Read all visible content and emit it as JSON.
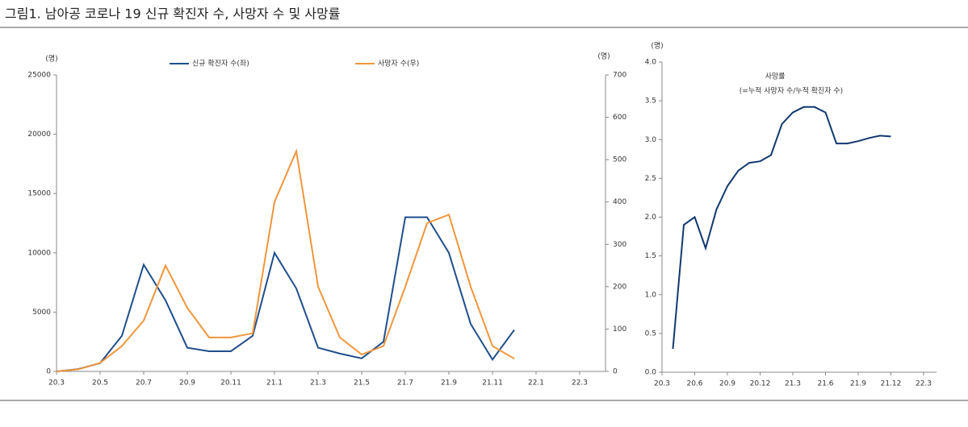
{
  "page_title": "그림1.  남아공 코로나 19 신규 확진자 수, 사망자 수 및 사망률",
  "chart_data": [
    {
      "type": "line",
      "ylabel": "(명)",
      "y2label": "(명)",
      "x": [
        "20.3",
        null,
        "20.5",
        null,
        "20.7",
        null,
        "20.9",
        null,
        "20.11",
        null,
        "21.1",
        null,
        "21.3",
        null,
        "21.5",
        null,
        "21.7",
        null,
        "21.9",
        null,
        "21.11",
        null,
        "22.1",
        null,
        "22.3"
      ],
      "ylim": [
        0,
        25000
      ],
      "yticks": [
        0,
        5000,
        10000,
        15000,
        20000,
        25000
      ],
      "y2lim": [
        0,
        700
      ],
      "y2ticks": [
        0,
        100,
        200,
        300,
        400,
        500,
        600,
        700
      ],
      "series": [
        {
          "name": "신규 확진자 수(좌)",
          "color": "#1f4e8c",
          "values": [
            0,
            200,
            700,
            3000,
            9000,
            6000,
            2000,
            1700,
            1700,
            3000,
            10000,
            7000,
            2000,
            1500,
            1100,
            2500,
            13000,
            13000,
            10000,
            4000,
            1000,
            3500,
            null,
            null,
            null
          ]
        },
        {
          "name": "사망자 수(우)",
          "color": "#f0963c",
          "axis": "y2",
          "values": [
            0,
            5,
            20,
            60,
            120,
            250,
            150,
            80,
            80,
            90,
            400,
            520,
            200,
            80,
            40,
            60,
            200,
            350,
            370,
            200,
            60,
            30,
            null,
            null,
            null
          ]
        }
      ]
    },
    {
      "type": "line",
      "ylabel": "(명)",
      "title": "사망률",
      "subtitle": "(=누적 사망자 수/누적 확진자 수)",
      "x": [
        "20.3",
        null,
        null,
        "20.6",
        null,
        null,
        "20.9",
        null,
        null,
        "20.12",
        null,
        null,
        "21.3",
        null,
        null,
        "21.6",
        null,
        null,
        "21.9",
        null,
        null,
        "21.12",
        null,
        null,
        "22.3"
      ],
      "ylim": [
        0,
        4
      ],
      "yticks": [
        {
          "value": 0,
          "label": "0.0"
        },
        0.5,
        {
          "value": 1,
          "label": "1.0"
        },
        1.5,
        {
          "value": 2,
          "label": "2.0"
        },
        2.5,
        {
          "value": 3,
          "label": "3.0"
        },
        3.5,
        {
          "value": 4,
          "label": "4.0"
        }
      ],
      "series": [
        {
          "color": "#12386e",
          "values": [
            null,
            0.3,
            1.9,
            2.0,
            1.6,
            2.1,
            2.4,
            2.6,
            2.7,
            2.72,
            2.8,
            3.2,
            3.35,
            3.42,
            3.42,
            3.35,
            2.95,
            2.95,
            2.98,
            3.02,
            3.05,
            3.04,
            null,
            null,
            null
          ]
        }
      ]
    }
  ]
}
